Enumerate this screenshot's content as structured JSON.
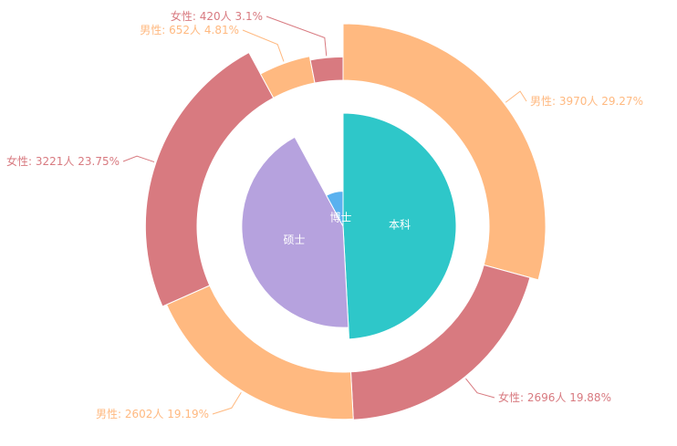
{
  "chart_data": {
    "type": "pie",
    "inner": {
      "categories": [
        "本科",
        "硕士",
        "博士"
      ],
      "values": [
        6666,
        5823,
        1072
      ],
      "colors": [
        "#2ec7c9",
        "#b6a2de",
        "#5ab1ef"
      ],
      "label_color": "#ffffff"
    },
    "outer": {
      "slices": [
        {
          "label": "男性: 3970人  29.27%",
          "value": 3970,
          "color": "#ffb980"
        },
        {
          "label": "女性: 2696人  19.88%",
          "value": 2696,
          "color": "#d87a80"
        },
        {
          "label": "男性: 2602人  19.19%",
          "value": 2602,
          "color": "#ffb980"
        },
        {
          "label": "女性: 3221人  23.75%",
          "value": 3221,
          "color": "#d87a80"
        },
        {
          "label": "男性: 652人  4.81%",
          "value": 652,
          "color": "#ffb980"
        },
        {
          "label": "女性: 420人  3.1%",
          "value": 420,
          "color": "#d87a80"
        }
      ]
    },
    "rose": true
  }
}
